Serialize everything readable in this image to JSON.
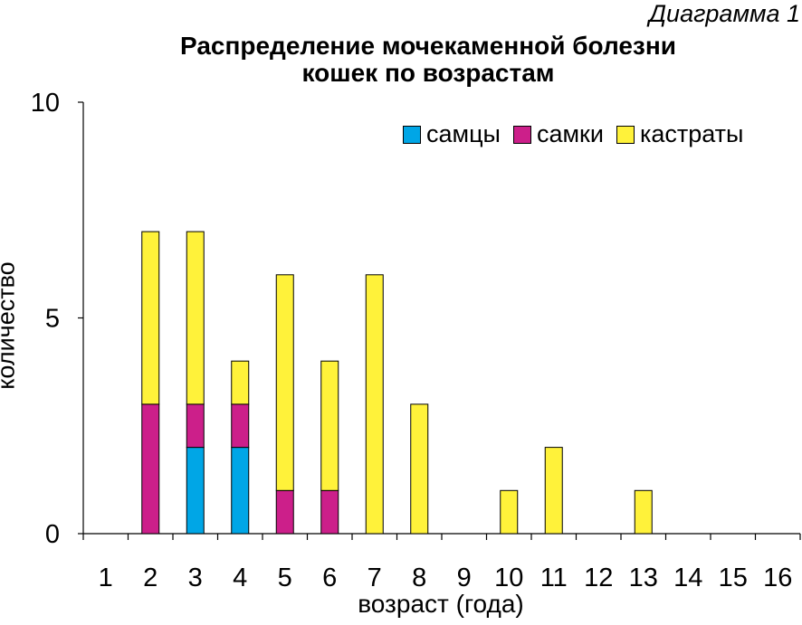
{
  "chart_data": {
    "type": "bar",
    "stacked": true,
    "corner_label": "Диаграмма 1",
    "title_lines": [
      "Распределение мочекаменной болезни",
      "кошек по возрастам"
    ],
    "xlabel": "возраст (года)",
    "ylabel": "количество",
    "ylim": [
      0,
      10
    ],
    "yticks": [
      "0",
      "5",
      "10"
    ],
    "ytick_values": [
      0,
      5,
      10
    ],
    "grid": false,
    "legend_position": "top-right",
    "categories": [
      "1",
      "2",
      "3",
      "4",
      "5",
      "6",
      "7",
      "8",
      "9",
      "10",
      "11",
      "12",
      "13",
      "14",
      "15",
      "16"
    ],
    "series": [
      {
        "name": "самцы",
        "color": "#00a6e6",
        "values": [
          0,
          0,
          2,
          2,
          0,
          0,
          0,
          0,
          0,
          0,
          0,
          0,
          0,
          0,
          0,
          0
        ]
      },
      {
        "name": "самки",
        "color": "#cc1f8a",
        "values": [
          0,
          3,
          1,
          1,
          1,
          1,
          0,
          0,
          0,
          0,
          0,
          0,
          0,
          0,
          0,
          0
        ]
      },
      {
        "name": "кастраты",
        "color": "#fff23a",
        "values": [
          0,
          4,
          4,
          1,
          5,
          3,
          6,
          3,
          0,
          1,
          2,
          0,
          1,
          0,
          0,
          0
        ]
      }
    ]
  }
}
